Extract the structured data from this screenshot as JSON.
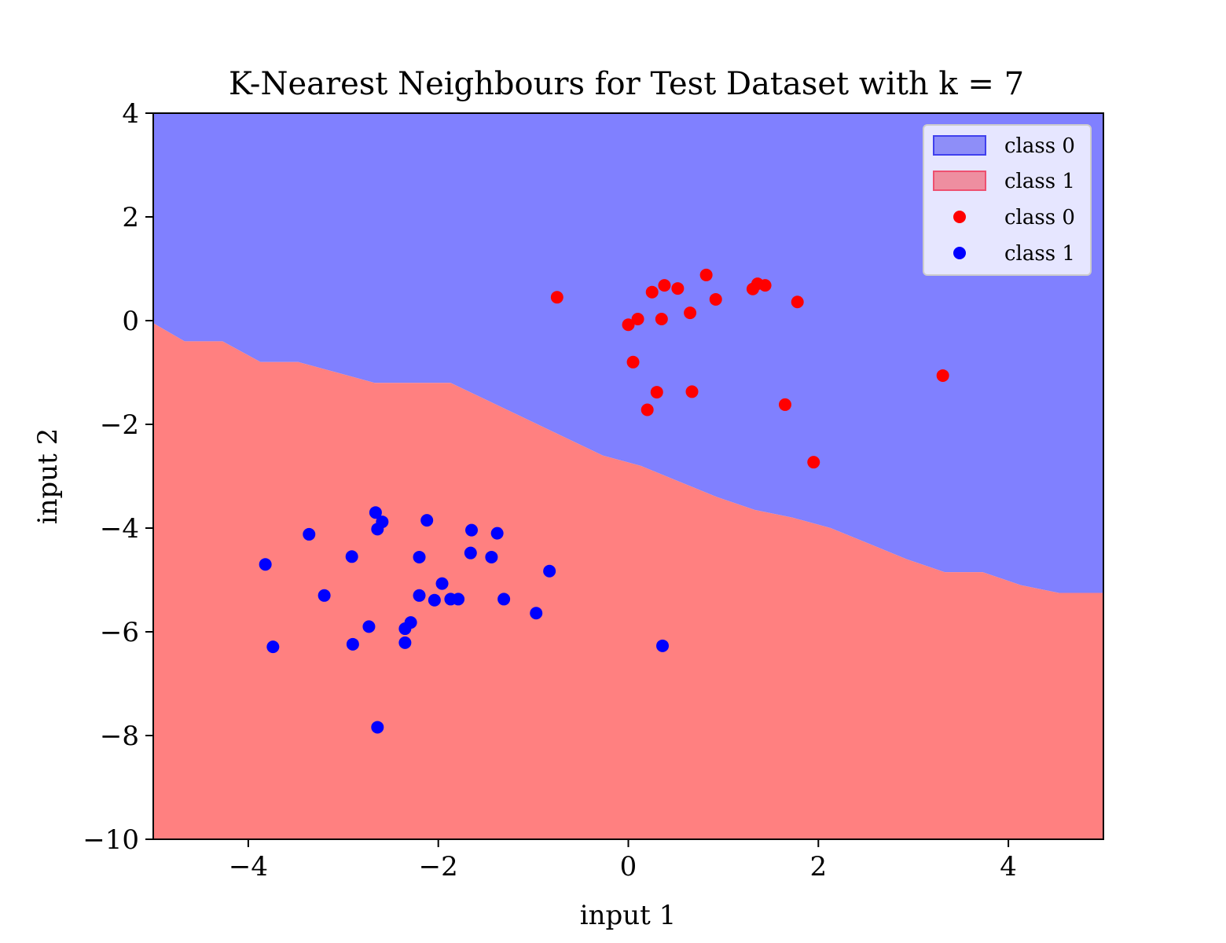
{
  "chart_data": {
    "type": "scatter",
    "title": "K-Nearest Neighbours for Test Dataset with k = 7",
    "xlabel": "input 1",
    "ylabel": "input 2",
    "xlim": [
      -5,
      5
    ],
    "ylim": [
      -10,
      4
    ],
    "xticks": [
      -4,
      -2,
      0,
      2,
      4
    ],
    "yticks": [
      -10,
      -8,
      -6,
      -4,
      -2,
      0,
      2,
      4
    ],
    "grid": false,
    "legend_position": "top-right",
    "regions": [
      {
        "name": "class 0",
        "color": "#8080ff",
        "legend_color": "#7070f5",
        "position": "above boundary"
      },
      {
        "name": "class 1",
        "color": "#ff8080",
        "legend_color": "#f07080",
        "position": "below boundary"
      }
    ],
    "decision_boundary": {
      "x": [
        -5,
        -4.67,
        -4.27,
        -3.87,
        -3.87,
        -3.87,
        -3.47,
        -3.07,
        -2.67,
        -2.67,
        -2.27,
        -1.87,
        -1.47,
        -1.07,
        -0.67,
        -0.27,
        0.13,
        0.53,
        0.93,
        1.33,
        1.73,
        2.13,
        2.53,
        2.93,
        3.33,
        3.73,
        4.13,
        4.53,
        5
      ],
      "y": [
        -0.05,
        -0.4,
        -0.4,
        -0.8,
        -0.8,
        -0.8,
        -0.8,
        -1.0,
        -1.2,
        -1.2,
        -1.2,
        -1.2,
        -1.55,
        -1.9,
        -2.25,
        -2.6,
        -2.8,
        -3.1,
        -3.4,
        -3.65,
        -3.8,
        -4.0,
        -4.3,
        -4.6,
        -4.85,
        -4.85,
        -5.1,
        -5.25,
        -5.25
      ]
    },
    "series": [
      {
        "name": "class 0",
        "color": "#ff0000",
        "points": [
          [
            -0.75,
            0.45
          ],
          [
            0.0,
            -0.08
          ],
          [
            0.05,
            -0.8
          ],
          [
            0.1,
            0.03
          ],
          [
            0.2,
            -1.72
          ],
          [
            0.25,
            0.55
          ],
          [
            0.3,
            -1.38
          ],
          [
            0.35,
            0.03
          ],
          [
            0.38,
            0.68
          ],
          [
            0.52,
            0.62
          ],
          [
            0.65,
            0.15
          ],
          [
            0.67,
            -1.37
          ],
          [
            0.82,
            0.88
          ],
          [
            0.92,
            0.41
          ],
          [
            1.31,
            0.61
          ],
          [
            1.36,
            0.71
          ],
          [
            1.44,
            0.68
          ],
          [
            1.65,
            -1.62
          ],
          [
            1.78,
            0.36
          ],
          [
            1.95,
            -2.73
          ],
          [
            3.31,
            -1.06
          ]
        ]
      },
      {
        "name": "class 1",
        "color": "#0000ff",
        "points": [
          [
            -3.82,
            -4.7
          ],
          [
            -3.74,
            -6.29
          ],
          [
            -3.36,
            -4.12
          ],
          [
            -3.2,
            -5.3
          ],
          [
            -2.91,
            -4.55
          ],
          [
            -2.9,
            -6.24
          ],
          [
            -2.73,
            -5.9
          ],
          [
            -2.66,
            -3.7
          ],
          [
            -2.64,
            -4.02
          ],
          [
            -2.59,
            -3.88
          ],
          [
            -2.64,
            -7.84
          ],
          [
            -2.35,
            -5.94
          ],
          [
            -2.35,
            -6.21
          ],
          [
            -2.29,
            -5.82
          ],
          [
            -2.2,
            -4.56
          ],
          [
            -2.2,
            -5.3
          ],
          [
            -2.12,
            -3.85
          ],
          [
            -2.04,
            -5.39
          ],
          [
            -1.96,
            -5.07
          ],
          [
            -1.87,
            -5.37
          ],
          [
            -1.79,
            -5.37
          ],
          [
            -1.66,
            -4.48
          ],
          [
            -1.65,
            -4.04
          ],
          [
            -1.44,
            -4.56
          ],
          [
            -1.38,
            -4.1
          ],
          [
            -1.31,
            -5.37
          ],
          [
            -0.97,
            -5.64
          ],
          [
            -0.83,
            -4.83
          ],
          [
            0.36,
            -6.27
          ]
        ]
      }
    ]
  }
}
